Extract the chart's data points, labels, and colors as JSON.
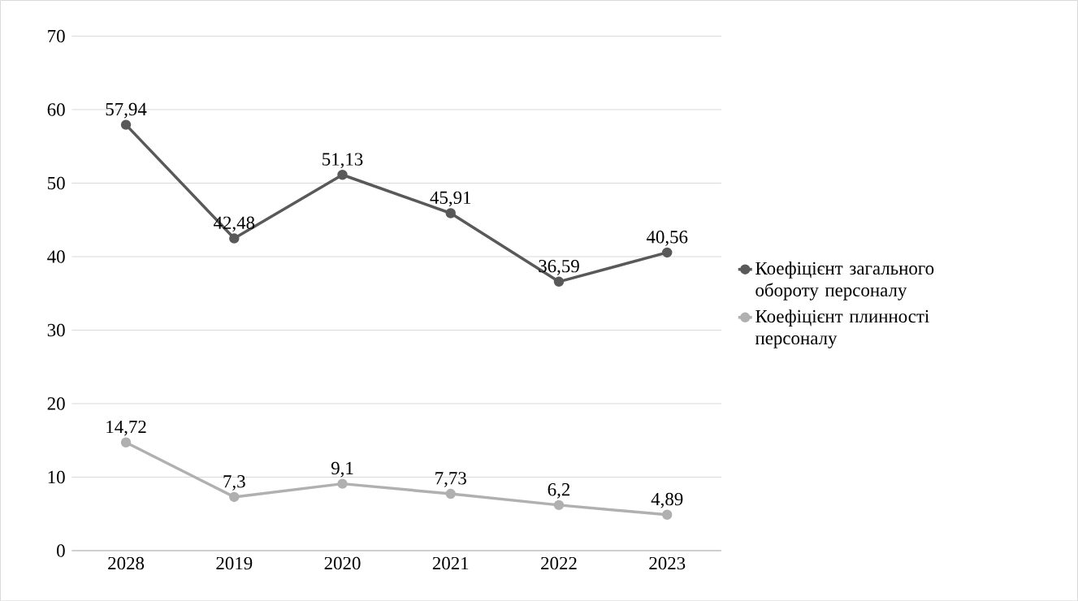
{
  "chart_data": {
    "type": "line",
    "categories": [
      "2028",
      "2019",
      "2020",
      "2021",
      "2022",
      "2023"
    ],
    "series": [
      {
        "name": "Коефіцієнт загального обороту персоналу",
        "color": "#595959",
        "values": [
          57.94,
          42.48,
          51.13,
          45.91,
          36.59,
          40.56
        ],
        "value_labels": [
          "57,94",
          "42,48",
          "51,13",
          "45,91",
          "36,59",
          "40,56"
        ]
      },
      {
        "name": "Коефіцієнт плинності персоналу",
        "color": "#b0b0b0",
        "values": [
          14.72,
          7.3,
          9.1,
          7.73,
          6.2,
          4.89
        ],
        "value_labels": [
          "14,72",
          "7,3",
          "9,1",
          "7,73",
          "6,2",
          "4,89"
        ]
      }
    ],
    "ylim": [
      0,
      70
    ],
    "yticks": [
      0,
      10,
      20,
      30,
      40,
      50,
      60,
      70
    ],
    "grid": "y",
    "legend": "right",
    "marker": "circle",
    "line_style": "solid"
  }
}
